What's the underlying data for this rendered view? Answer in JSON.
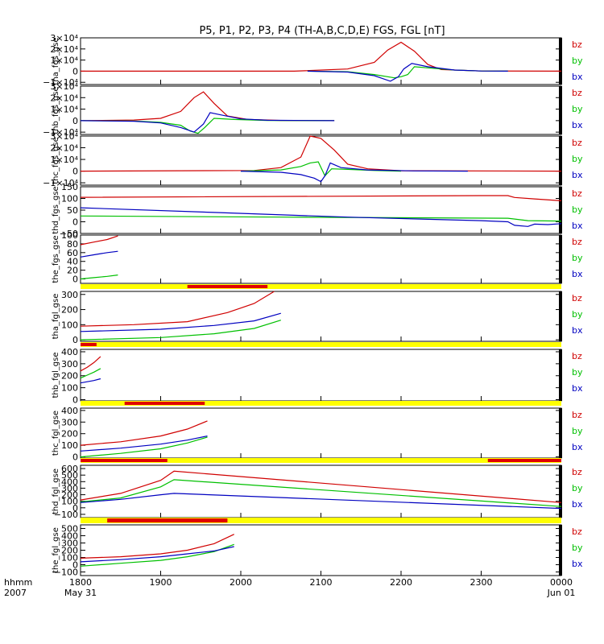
{
  "title": "P5, P1, P2, P3, P4 (TH-A,B,C,D,E) FGS, FGL [nT]",
  "time_axis": {
    "label_left_1": "hhmm",
    "label_left_2": "2007",
    "ticks": [
      {
        "t": 0,
        "label": "1800",
        "sub": "May 31"
      },
      {
        "t": 60,
        "label": "1900",
        "sub": ""
      },
      {
        "t": 120,
        "label": "2000",
        "sub": ""
      },
      {
        "t": 180,
        "label": "2100",
        "sub": ""
      },
      {
        "t": 240,
        "label": "2200",
        "sub": ""
      },
      {
        "t": 300,
        "label": "2300",
        "sub": ""
      },
      {
        "t": 360,
        "label": "0000",
        "sub": "Jun 01"
      }
    ]
  },
  "legend": [
    {
      "name": "bz",
      "color": "#d00000"
    },
    {
      "name": "by",
      "color": "#00c000"
    },
    {
      "name": "bx",
      "color": "#0000c0"
    }
  ],
  "bar_colors": {
    "base": "#ffff00",
    "mark": "#e00000"
  },
  "chart_data": [
    {
      "type": "line",
      "ylabel": "tha_fgs_gse",
      "ylim": [
        -12000,
        30000
      ],
      "yticks": [
        {
          "v": 30000,
          "label": "3×10⁴"
        },
        {
          "v": 20000,
          "label": "2×10⁴"
        },
        {
          "v": 10000,
          "label": "1×10⁴"
        },
        {
          "v": 0,
          "label": "0"
        },
        {
          "v": -10000,
          "label": "−1×10⁴"
        }
      ],
      "series": [
        {
          "name": "bz",
          "x": [
            0,
            160,
            200,
            220,
            230,
            240,
            250,
            260,
            270,
            300,
            360
          ],
          "y": [
            0,
            0,
            2000,
            8000,
            19000,
            26000,
            18000,
            6000,
            1500,
            200,
            0
          ]
        },
        {
          "name": "by",
          "x": [
            170,
            200,
            220,
            235,
            240,
            245,
            250,
            260,
            280,
            300,
            320
          ],
          "y": [
            0,
            -500,
            -3000,
            -6000,
            -5000,
            -3000,
            4000,
            3000,
            1000,
            200,
            0
          ]
        },
        {
          "name": "bx",
          "x": [
            170,
            200,
            220,
            232,
            238,
            242,
            248,
            260,
            280,
            300,
            320
          ],
          "y": [
            0,
            -800,
            -4000,
            -9000,
            -5000,
            2000,
            7000,
            4000,
            1000,
            200,
            0
          ]
        }
      ]
    },
    {
      "type": "line",
      "ylabel": "thb_fgs_gse",
      "ylim": [
        -12000,
        30000
      ],
      "yticks": [
        {
          "v": 30000,
          "label": "3×10⁴"
        },
        {
          "v": 20000,
          "label": "2×10⁴"
        },
        {
          "v": 10000,
          "label": "1×10⁴"
        },
        {
          "v": 0,
          "label": "0"
        },
        {
          "v": -10000,
          "label": "−1×10⁴"
        }
      ],
      "series": [
        {
          "name": "bz",
          "x": [
            0,
            40,
            60,
            75,
            85,
            92,
            100,
            110,
            125,
            150,
            190
          ],
          "y": [
            0,
            500,
            2000,
            8000,
            20000,
            25000,
            15000,
            4000,
            1000,
            200,
            0
          ]
        },
        {
          "name": "by",
          "x": [
            0,
            40,
            60,
            75,
            82,
            88,
            93,
            100,
            115,
            140,
            190
          ],
          "y": [
            0,
            -300,
            -1500,
            -4000,
            -9000,
            -11000,
            -6000,
            2000,
            1000,
            200,
            0
          ]
        },
        {
          "name": "bx",
          "x": [
            0,
            40,
            60,
            75,
            85,
            92,
            97,
            105,
            120,
            140,
            190
          ],
          "y": [
            0,
            -500,
            -2000,
            -6000,
            -10000,
            -3000,
            7000,
            5000,
            1500,
            300,
            0
          ]
        }
      ]
    },
    {
      "type": "line",
      "ylabel": "thc_fgs_gse",
      "ylim": [
        -12000,
        30000
      ],
      "yticks": [
        {
          "v": 30000,
          "label": "3×10⁴"
        },
        {
          "v": 20000,
          "label": "2×10⁴"
        },
        {
          "v": 10000,
          "label": "1×10⁴"
        },
        {
          "v": 0,
          "label": "0"
        },
        {
          "v": -10000,
          "label": "−1×10⁴"
        }
      ],
      "series": [
        {
          "name": "bz",
          "x": [
            0,
            130,
            150,
            165,
            172,
            180,
            190,
            200,
            215,
            240,
            360
          ],
          "y": [
            0,
            500,
            3000,
            12000,
            30000,
            28000,
            18000,
            6000,
            2000,
            300,
            0
          ]
        },
        {
          "name": "by",
          "x": [
            120,
            150,
            165,
            172,
            178,
            183,
            188,
            200,
            220,
            240
          ],
          "y": [
            0,
            1000,
            4000,
            7000,
            8000,
            -4000,
            2000,
            1500,
            500,
            0
          ]
        },
        {
          "name": "bx",
          "x": [
            120,
            150,
            165,
            175,
            180,
            183,
            187,
            195,
            215,
            250,
            290
          ],
          "y": [
            0,
            -1000,
            -3000,
            -6000,
            -9000,
            -4000,
            7000,
            3000,
            1000,
            200,
            0
          ]
        }
      ]
    },
    {
      "type": "line",
      "ylabel": "thd_fgs_gse",
      "ylim": [
        -50,
        150
      ],
      "yticks": [
        {
          "v": 150,
          "label": "150"
        },
        {
          "v": 100,
          "label": "100"
        },
        {
          "v": 50,
          "label": "50"
        },
        {
          "v": 0,
          "label": "0"
        },
        {
          "v": -50,
          "label": "−50"
        }
      ],
      "series": [
        {
          "name": "bz",
          "x": [
            0,
            300,
            320,
            325,
            340,
            360
          ],
          "y": [
            105,
            112,
            112,
            104,
            98,
            90
          ]
        },
        {
          "name": "by",
          "x": [
            0,
            150,
            320,
            335,
            360
          ],
          "y": [
            25,
            20,
            15,
            5,
            3
          ]
        },
        {
          "name": "bx",
          "x": [
            0,
            100,
            200,
            300,
            320,
            325,
            335,
            340,
            350,
            360
          ],
          "y": [
            60,
            40,
            20,
            5,
            0,
            -15,
            -20,
            -10,
            -12,
            -8
          ]
        }
      ]
    },
    {
      "type": "line",
      "ylabel": "the_fgs_gse",
      "ylim": [
        -10,
        100
      ],
      "yticks": [
        {
          "v": 100,
          "label": "100"
        },
        {
          "v": 80,
          "label": "80"
        },
        {
          "v": 60,
          "label": "60"
        },
        {
          "v": 40,
          "label": "40"
        },
        {
          "v": 20,
          "label": "20"
        },
        {
          "v": 0,
          "label": "0"
        }
      ],
      "series": [
        {
          "name": "bz",
          "x": [
            0,
            10,
            20,
            28
          ],
          "y": [
            78,
            84,
            90,
            98
          ]
        },
        {
          "name": "by",
          "x": [
            0,
            10,
            20,
            28
          ],
          "y": [
            0,
            3,
            6,
            9
          ]
        },
        {
          "name": "bx",
          "x": [
            0,
            10,
            20,
            28
          ],
          "y": [
            50,
            55,
            60,
            63
          ]
        }
      ]
    },
    {
      "type": "line",
      "ylabel": "tha_fgl_gse",
      "ylim": [
        -10,
        320
      ],
      "yticks": [
        {
          "v": 300,
          "label": "300"
        },
        {
          "v": 200,
          "label": "200"
        },
        {
          "v": 100,
          "label": "100"
        },
        {
          "v": 0,
          "label": "0"
        }
      ],
      "series": [
        {
          "name": "bz",
          "x": [
            0,
            40,
            80,
            110,
            130,
            145
          ],
          "y": [
            90,
            100,
            120,
            180,
            240,
            320
          ]
        },
        {
          "name": "by",
          "x": [
            0,
            60,
            100,
            130,
            150
          ],
          "y": [
            0,
            15,
            40,
            75,
            130
          ]
        },
        {
          "name": "bx",
          "x": [
            0,
            60,
            100,
            130,
            150
          ],
          "y": [
            55,
            70,
            95,
            125,
            175
          ]
        }
      ]
    },
    {
      "type": "line",
      "ylabel": "thb_fgl_gse",
      "ylim": [
        -10,
        420
      ],
      "yticks": [
        {
          "v": 400,
          "label": "400"
        },
        {
          "v": 300,
          "label": "300"
        },
        {
          "v": 200,
          "label": "200"
        },
        {
          "v": 100,
          "label": "100"
        },
        {
          "v": 0,
          "label": "0"
        }
      ],
      "series": [
        {
          "name": "bz",
          "x": [
            0,
            5,
            10,
            15
          ],
          "y": [
            240,
            270,
            310,
            360
          ]
        },
        {
          "name": "by",
          "x": [
            0,
            5,
            10,
            15
          ],
          "y": [
            180,
            205,
            230,
            260
          ]
        },
        {
          "name": "bx",
          "x": [
            0,
            5,
            10,
            15
          ],
          "y": [
            140,
            150,
            160,
            175
          ]
        }
      ]
    },
    {
      "type": "line",
      "ylabel": "thc_fgl_gse",
      "ylim": [
        -10,
        420
      ],
      "yticks": [
        {
          "v": 400,
          "label": "400"
        },
        {
          "v": 300,
          "label": "300"
        },
        {
          "v": 200,
          "label": "200"
        },
        {
          "v": 100,
          "label": "100"
        },
        {
          "v": 0,
          "label": "0"
        }
      ],
      "series": [
        {
          "name": "bz",
          "x": [
            0,
            30,
            60,
            80,
            95
          ],
          "y": [
            100,
            130,
            180,
            240,
            310
          ]
        },
        {
          "name": "by",
          "x": [
            0,
            30,
            60,
            80,
            95
          ],
          "y": [
            0,
            30,
            70,
            120,
            170
          ]
        },
        {
          "name": "bx",
          "x": [
            0,
            30,
            60,
            80,
            95
          ],
          "y": [
            50,
            75,
            110,
            145,
            180
          ]
        }
      ]
    },
    {
      "type": "line",
      "ylabel": "thd_fgl_gse",
      "ylim": [
        -150,
        650
      ],
      "yticks": [
        {
          "v": 600,
          "label": "600"
        },
        {
          "v": 500,
          "label": "500"
        },
        {
          "v": 400,
          "label": "400"
        },
        {
          "v": 300,
          "label": "300"
        },
        {
          "v": 200,
          "label": "200"
        },
        {
          "v": 100,
          "label": "100"
        },
        {
          "v": 0,
          "label": "0"
        },
        {
          "v": -100,
          "label": "−100"
        }
      ],
      "series": [
        {
          "name": "bz",
          "x": [
            0,
            30,
            60,
            70,
            360
          ],
          "y": [
            120,
            220,
            420,
            560,
            80
          ]
        },
        {
          "name": "by",
          "x": [
            0,
            30,
            60,
            70,
            360
          ],
          "y": [
            90,
            150,
            320,
            430,
            20
          ]
        },
        {
          "name": "bx",
          "x": [
            0,
            30,
            60,
            70,
            360
          ],
          "y": [
            80,
            130,
            200,
            220,
            -10
          ]
        }
      ]
    },
    {
      "type": "line",
      "ylabel": "the_fgl_gse",
      "ylim": [
        -150,
        550
      ],
      "yticks": [
        {
          "v": 500,
          "label": "500"
        },
        {
          "v": 400,
          "label": "400"
        },
        {
          "v": 300,
          "label": "300"
        },
        {
          "v": 200,
          "label": "200"
        },
        {
          "v": 100,
          "label": "100"
        },
        {
          "v": 0,
          "label": "0"
        },
        {
          "v": -100,
          "label": "−100"
        }
      ],
      "series": [
        {
          "name": "bz",
          "x": [
            0,
            30,
            60,
            80,
            100,
            115
          ],
          "y": [
            90,
            110,
            150,
            200,
            290,
            420
          ]
        },
        {
          "name": "by",
          "x": [
            0,
            30,
            60,
            80,
            100,
            115
          ],
          "y": [
            -20,
            20,
            60,
            110,
            180,
            280
          ]
        },
        {
          "name": "bx",
          "x": [
            0,
            30,
            60,
            80,
            100,
            115
          ],
          "y": [
            40,
            70,
            110,
            150,
            190,
            250
          ]
        }
      ]
    }
  ],
  "mode_bars": [
    {
      "after_panel": 4,
      "segments": [
        [
          80,
          140
        ]
      ]
    },
    {
      "after_panel": 5,
      "segments": [
        [
          0,
          12
        ]
      ]
    },
    {
      "after_panel": 6,
      "segments": [
        [
          33,
          93
        ]
      ]
    },
    {
      "after_panel": 7,
      "segments": [
        [
          0,
          65
        ],
        [
          305,
          360
        ]
      ]
    },
    {
      "after_panel": 8,
      "segments": [
        [
          20,
          110
        ]
      ]
    }
  ]
}
